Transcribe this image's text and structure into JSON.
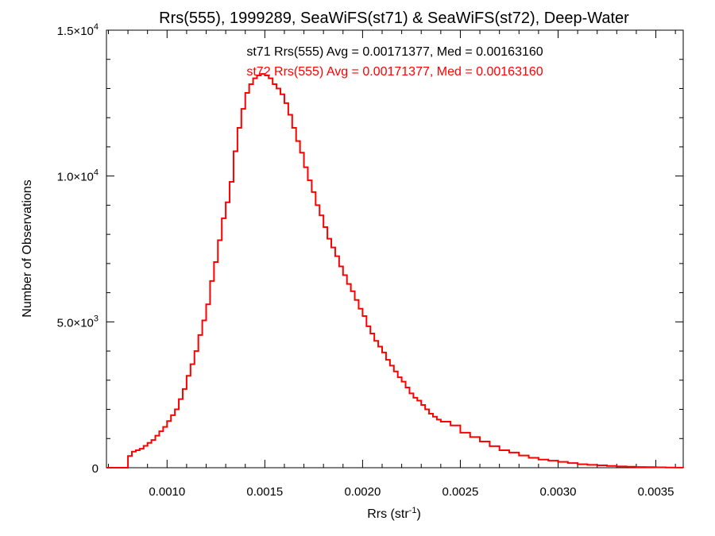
{
  "chart_data": {
    "type": "line",
    "step": true,
    "title": "Rrs(555), 1999289, SeaWiFS(st71) & SeaWiFS(st72), Deep-Water",
    "xlabel": "Rrs (str",
    "xlabel_sup": "-1",
    "xlabel_close": ")",
    "ylabel": "Number of Observations",
    "xlim": [
      0.00069,
      0.00364
    ],
    "ylim": [
      0,
      15000
    ],
    "grid": false,
    "x_ticks": [
      {
        "value": 0.001,
        "label": "0.0010"
      },
      {
        "value": 0.0015,
        "label": "0.0015"
      },
      {
        "value": 0.002,
        "label": "0.0020"
      },
      {
        "value": 0.0025,
        "label": "0.0025"
      },
      {
        "value": 0.003,
        "label": "0.0030"
      },
      {
        "value": 0.0035,
        "label": "0.0035"
      }
    ],
    "y_ticks": [
      {
        "value": 0,
        "mantissa": "0",
        "exp": ""
      },
      {
        "value": 5000,
        "mantissa": "5.0×10",
        "exp": "3"
      },
      {
        "value": 10000,
        "mantissa": "1.0×10",
        "exp": "4"
      },
      {
        "value": 15000,
        "mantissa": "1.5×10",
        "exp": "4"
      }
    ],
    "annotations": [
      {
        "text": "st71 Rrs(555) Avg = 0.00171377, Med = 0.00163160",
        "color": "#000000"
      },
      {
        "text": "st72 Rrs(555) Avg = 0.00171377, Med = 0.00163160",
        "color": "#ff0000"
      }
    ],
    "series": [
      {
        "color": "#ff0000",
        "x": [
          0.00069,
          0.00079,
          0.0008,
          0.00082,
          0.00084,
          0.00086,
          0.00088,
          0.0009,
          0.00092,
          0.00094,
          0.00096,
          0.00098,
          0.001,
          0.00102,
          0.00104,
          0.00106,
          0.00108,
          0.0011,
          0.00112,
          0.00114,
          0.00116,
          0.00118,
          0.0012,
          0.00122,
          0.00124,
          0.00126,
          0.00128,
          0.0013,
          0.00132,
          0.00134,
          0.00136,
          0.00138,
          0.0014,
          0.00142,
          0.00144,
          0.00146,
          0.00148,
          0.0015,
          0.00152,
          0.00154,
          0.00156,
          0.00158,
          0.0016,
          0.00162,
          0.00164,
          0.00166,
          0.00168,
          0.0017,
          0.00172,
          0.00174,
          0.00176,
          0.00178,
          0.0018,
          0.00182,
          0.00184,
          0.00186,
          0.00188,
          0.0019,
          0.00192,
          0.00194,
          0.00196,
          0.00198,
          0.002,
          0.00202,
          0.00204,
          0.00206,
          0.00208,
          0.0021,
          0.00212,
          0.00214,
          0.00216,
          0.00218,
          0.0022,
          0.00222,
          0.00224,
          0.00226,
          0.00228,
          0.0023,
          0.00232,
          0.00234,
          0.00236,
          0.00238,
          0.0024,
          0.00245,
          0.0025,
          0.00255,
          0.0026,
          0.00265,
          0.0027,
          0.00275,
          0.0028,
          0.00285,
          0.0029,
          0.00295,
          0.003,
          0.00305,
          0.0031,
          0.00315,
          0.0032,
          0.00325,
          0.0033,
          0.00335,
          0.0034,
          0.00345,
          0.0035,
          0.00355,
          0.0036,
          0.00364
        ],
        "y": [
          0,
          0,
          400,
          550,
          600,
          650,
          750,
          850,
          950,
          1100,
          1250,
          1400,
          1600,
          1800,
          2000,
          2350,
          2700,
          3150,
          3550,
          4000,
          4550,
          5050,
          5600,
          6400,
          7050,
          7800,
          8550,
          9100,
          9800,
          10850,
          11650,
          12300,
          12850,
          13150,
          13350,
          13450,
          13500,
          13450,
          13350,
          13150,
          13000,
          12800,
          12500,
          12100,
          11650,
          11200,
          10800,
          10300,
          9850,
          9450,
          9000,
          8650,
          8250,
          7850,
          7550,
          7250,
          6900,
          6600,
          6300,
          6050,
          5750,
          5450,
          5200,
          4850,
          4600,
          4350,
          4150,
          3950,
          3700,
          3500,
          3300,
          3100,
          2950,
          2750,
          2550,
          2400,
          2300,
          2150,
          2000,
          1850,
          1750,
          1650,
          1580,
          1450,
          1200,
          1050,
          900,
          740,
          600,
          520,
          420,
          340,
          280,
          240,
          200,
          160,
          120,
          100,
          80,
          60,
          45,
          35,
          25,
          20,
          12,
          8,
          5,
          0
        ]
      }
    ]
  }
}
